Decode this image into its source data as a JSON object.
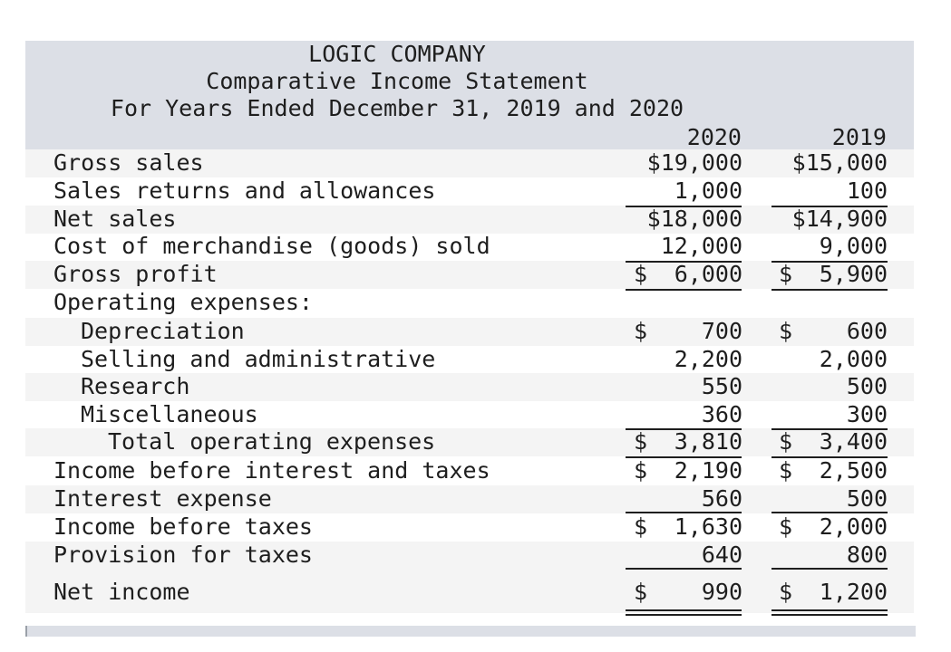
{
  "header": {
    "company": "LOGIC COMPANY",
    "statement": "Comparative Income Statement",
    "period": "For Years Ended December 31, 2019 and 2020",
    "year_current": "2020",
    "year_prior": "2019"
  },
  "rows": [
    {
      "label": "Gross sales",
      "sym1": "",
      "v2020": "$19,000",
      "sym2": "",
      "v2019": "$15,000"
    },
    {
      "label": "Sales returns and allowances",
      "sym1": "",
      "v2020": "1,000",
      "sym2": "",
      "v2019": "100"
    },
    {
      "label": "Net sales",
      "sym1": "",
      "v2020": "$18,000",
      "sym2": "",
      "v2019": "$14,900"
    },
    {
      "label": "Cost of merchandise (goods) sold",
      "sym1": "",
      "v2020": "12,000",
      "sym2": "",
      "v2019": "9,000"
    },
    {
      "label": "Gross profit",
      "sym1": "$",
      "v2020": "6,000",
      "sym2": "$",
      "v2019": "5,900"
    },
    {
      "label": "Operating expenses:",
      "sym1": "",
      "v2020": "",
      "sym2": "",
      "v2019": ""
    },
    {
      "label": "Depreciation",
      "sym1": "$",
      "v2020": "700",
      "sym2": "$",
      "v2019": "600"
    },
    {
      "label": "Selling and administrative",
      "sym1": "",
      "v2020": "2,200",
      "sym2": "",
      "v2019": "2,000"
    },
    {
      "label": "Research",
      "sym1": "",
      "v2020": "550",
      "sym2": "",
      "v2019": "500"
    },
    {
      "label": "Miscellaneous",
      "sym1": "",
      "v2020": "360",
      "sym2": "",
      "v2019": "300"
    },
    {
      "label": "Total operating expenses",
      "sym1": "$",
      "v2020": "3,810",
      "sym2": "$",
      "v2019": "3,400"
    },
    {
      "label": "Income before interest and taxes",
      "sym1": "$",
      "v2020": "2,190",
      "sym2": "$",
      "v2019": "2,500"
    },
    {
      "label": "Interest expense",
      "sym1": "",
      "v2020": "560",
      "sym2": "",
      "v2019": "500"
    },
    {
      "label": "Income before taxes",
      "sym1": "$",
      "v2020": "1,630",
      "sym2": "$",
      "v2019": "2,000"
    },
    {
      "label": "Provision for taxes",
      "sym1": "",
      "v2020": "640",
      "sym2": "",
      "v2019": "800"
    },
    {
      "label": "Net income",
      "sym1": "$",
      "v2020": "990",
      "sym2": "$",
      "v2019": "1,200"
    }
  ]
}
